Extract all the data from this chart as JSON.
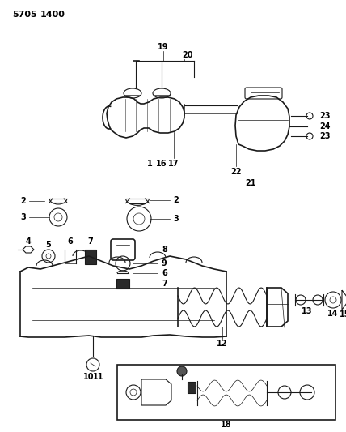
{
  "title": "5705   1400",
  "bg": "#ffffff",
  "lc": "#1a1a1a",
  "figsize": [
    4.28,
    5.33
  ],
  "dpi": 100
}
